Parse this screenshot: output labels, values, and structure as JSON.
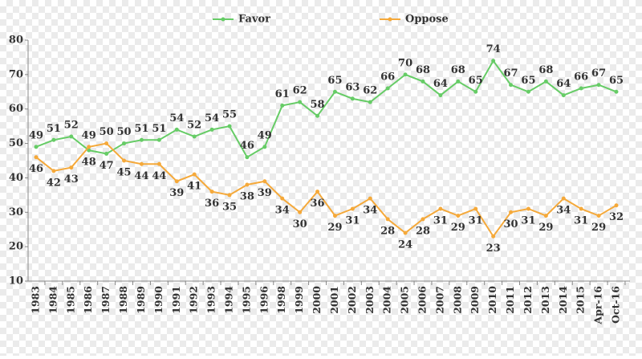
{
  "chart_data": {
    "type": "line",
    "categories": [
      "1983",
      "1984",
      "1985",
      "1986",
      "1987",
      "1988",
      "1989",
      "1990",
      "1991",
      "1992",
      "1993",
      "1994",
      "1995",
      "1996",
      "1998",
      "1999",
      "2000",
      "2001",
      "2002",
      "2003",
      "2004",
      "2005",
      "2006",
      "2007",
      "2008",
      "2009",
      "2010",
      "2011",
      "2012",
      "2013",
      "2014",
      "2015",
      "Apr-16",
      "Oct-16"
    ],
    "series": [
      {
        "name": "Favor",
        "color": "#66cc66",
        "values": [
          49,
          51,
          52,
          48,
          47,
          50,
          51,
          51,
          54,
          52,
          54,
          55,
          46,
          49,
          61,
          62,
          58,
          65,
          63,
          62,
          66,
          70,
          68,
          64,
          68,
          65,
          74,
          67,
          65,
          68,
          64,
          66,
          67,
          65
        ]
      },
      {
        "name": "Oppose",
        "color": "#f5a93a",
        "values": [
          46,
          42,
          43,
          49,
          50,
          45,
          44,
          44,
          39,
          41,
          36,
          35,
          38,
          39,
          34,
          30,
          36,
          29,
          31,
          34,
          28,
          24,
          28,
          31,
          29,
          31,
          23,
          30,
          31,
          29,
          34,
          31,
          29,
          32
        ]
      }
    ],
    "ylim": [
      10,
      80
    ],
    "yticks": [
      10,
      20,
      30,
      40,
      50,
      60,
      70,
      80
    ],
    "legend": "top"
  }
}
